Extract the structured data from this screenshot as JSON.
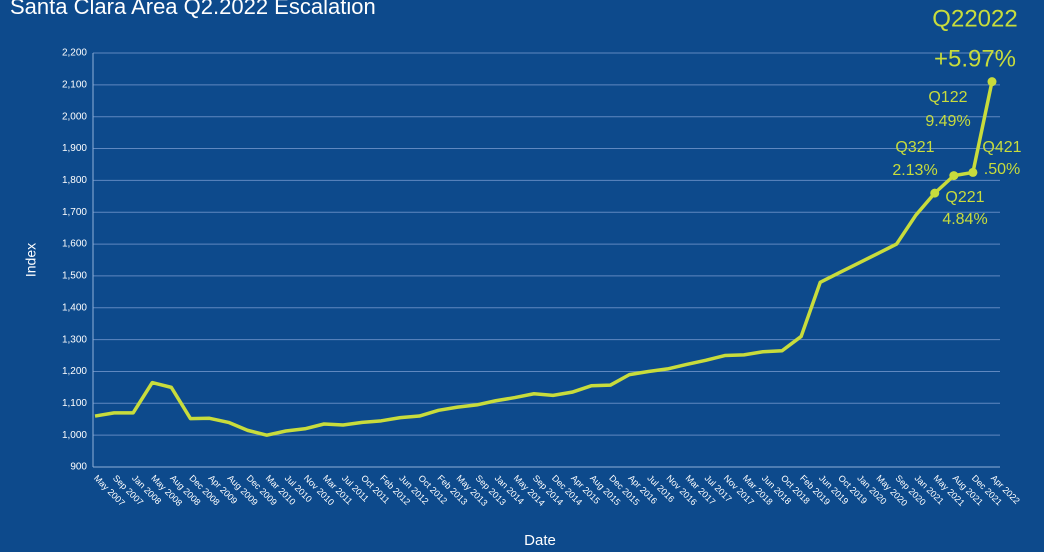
{
  "chart_data": {
    "type": "line",
    "title": "Santa Clara Area Q2.2022 Escalation",
    "x_label": "Date",
    "y_label": "Index",
    "categories": [
      "May 2007",
      "Sep 2007",
      "Jan 2008",
      "May 2008",
      "Aug 2008",
      "Dec 2008",
      "Apr 2009",
      "Aug 2009",
      "Dec 2009",
      "Mar 2010",
      "Jul 2010",
      "Nov 2010",
      "Mar 2011",
      "Jul 2011",
      "Oct 2011",
      "Feb 2012",
      "Jun 2012",
      "Oct 2012",
      "Feb 2013",
      "May 2013",
      "Sep 2013",
      "Jan 2014",
      "May 2014",
      "Sep 2014",
      "Dec 2014",
      "Apr 2015",
      "Aug 2015",
      "Dec 2015",
      "Apr 2016",
      "Jul 2016",
      "Nov 2016",
      "Mar 2017",
      "Jul 2017",
      "Nov 2017",
      "Mar 2018",
      "Jun 2018",
      "Oct 2018",
      "Feb 2019",
      "Jun 2019",
      "Oct 2019",
      "Jan 2020",
      "May 2020",
      "Sep 2020",
      "Jan 2021",
      "May 2021",
      "Aug 2021",
      "Dec 2021",
      "Apr 2022"
    ],
    "series": [
      {
        "name": "Index",
        "color": "#c8dc3c",
        "values": [
          1060,
          1070,
          1070,
          1165,
          1150,
          1052,
          1053,
          1040,
          1015,
          1000,
          1013,
          1020,
          1035,
          1032,
          1040,
          1045,
          1055,
          1060,
          1078,
          1088,
          1095,
          1108,
          1118,
          1130,
          1125,
          1135,
          1155,
          1157,
          1190,
          1200,
          1208,
          1222,
          1235,
          1250,
          1252,
          1262,
          1265,
          1310,
          1480,
          1510,
          1540,
          1570,
          1600,
          1690,
          1760,
          1815,
          1825,
          2110
        ]
      }
    ],
    "ylim": [
      900,
      2200
    ],
    "yticks": [
      900,
      {
        "value": 1000,
        "label": "1,000"
      },
      {
        "value": 1100,
        "label": "1,100"
      },
      {
        "value": 1200,
        "label": "1,200"
      },
      {
        "value": 1300,
        "label": "1,300"
      },
      {
        "value": 1400,
        "label": "1,400"
      },
      {
        "value": 1500,
        "label": "1,500"
      },
      {
        "value": 1600,
        "label": "1,600"
      },
      {
        "value": 1700,
        "label": "1,700"
      },
      {
        "value": 1800,
        "label": "1,800"
      },
      {
        "value": 1900,
        "label": "1,900"
      },
      {
        "value": 2000,
        "label": "2,000"
      },
      {
        "value": 2100,
        "label": "2,100"
      },
      {
        "value": 2200,
        "label": "2,200"
      }
    ],
    "grid": true,
    "annotations": [
      "Q22022",
      "+5.97%",
      "Q122",
      "9.49%",
      "Q321",
      "2.13%",
      "Q421",
      ".50%",
      "Q221",
      "4.84%"
    ]
  }
}
